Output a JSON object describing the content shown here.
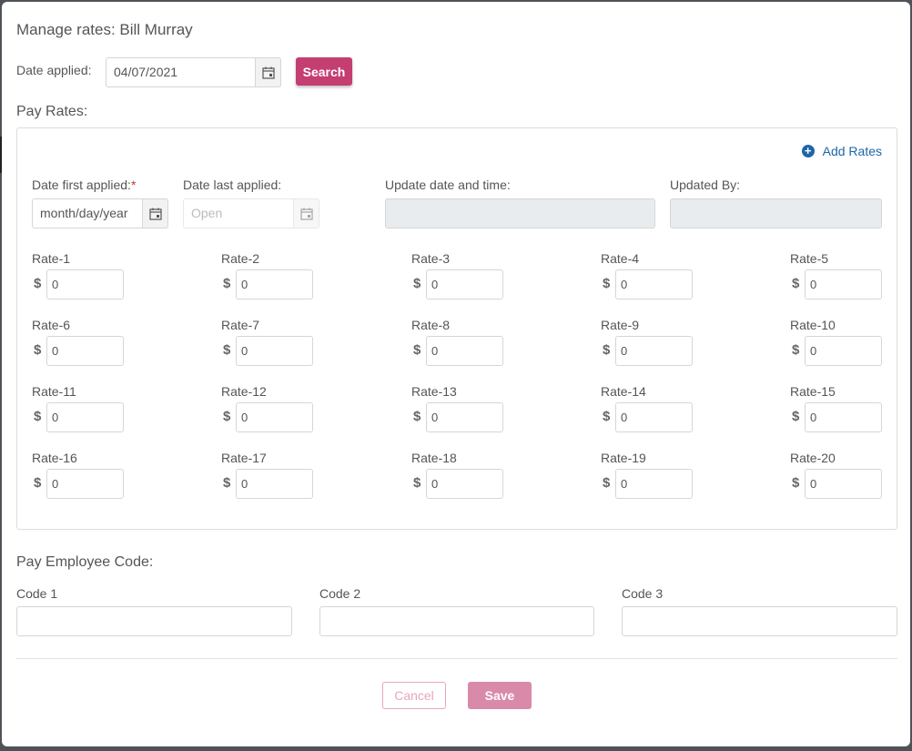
{
  "modal": {
    "title": "Manage rates: Bill Murray"
  },
  "search_bar": {
    "date_applied_label": "Date applied:",
    "date_applied_value": "04/07/2021",
    "search_label": "Search"
  },
  "pay_rates": {
    "section_label": "Pay Rates:",
    "add_rates_label": "Add Rates",
    "date_first_applied_label": "Date first applied:",
    "required_mark": "*",
    "date_first_applied_placeholder": "month/day/year",
    "date_last_applied_label": "Date last applied:",
    "date_last_applied_placeholder": "Open",
    "update_datetime_label": "Update date and time:",
    "updated_by_label": "Updated By:",
    "currency_symbol": "$",
    "rates": [
      {
        "label": "Rate-1",
        "value": "0"
      },
      {
        "label": "Rate-2",
        "value": "0"
      },
      {
        "label": "Rate-3",
        "value": "0"
      },
      {
        "label": "Rate-4",
        "value": "0"
      },
      {
        "label": "Rate-5",
        "value": "0"
      },
      {
        "label": "Rate-6",
        "value": "0"
      },
      {
        "label": "Rate-7",
        "value": "0"
      },
      {
        "label": "Rate-8",
        "value": "0"
      },
      {
        "label": "Rate-9",
        "value": "0"
      },
      {
        "label": "Rate-10",
        "value": "0"
      },
      {
        "label": "Rate-11",
        "value": "0"
      },
      {
        "label": "Rate-12",
        "value": "0"
      },
      {
        "label": "Rate-13",
        "value": "0"
      },
      {
        "label": "Rate-14",
        "value": "0"
      },
      {
        "label": "Rate-15",
        "value": "0"
      },
      {
        "label": "Rate-16",
        "value": "0"
      },
      {
        "label": "Rate-17",
        "value": "0"
      },
      {
        "label": "Rate-18",
        "value": "0"
      },
      {
        "label": "Rate-19",
        "value": "0"
      },
      {
        "label": "Rate-20",
        "value": "0"
      }
    ]
  },
  "employee_code": {
    "section_label": "Pay Employee Code:",
    "code1_label": "Code 1",
    "code2_label": "Code 2",
    "code3_label": "Code 3"
  },
  "footer": {
    "cancel_label": "Cancel",
    "save_label": "Save"
  },
  "colors": {
    "primary": "#c43e72",
    "link": "#1e66a8"
  }
}
